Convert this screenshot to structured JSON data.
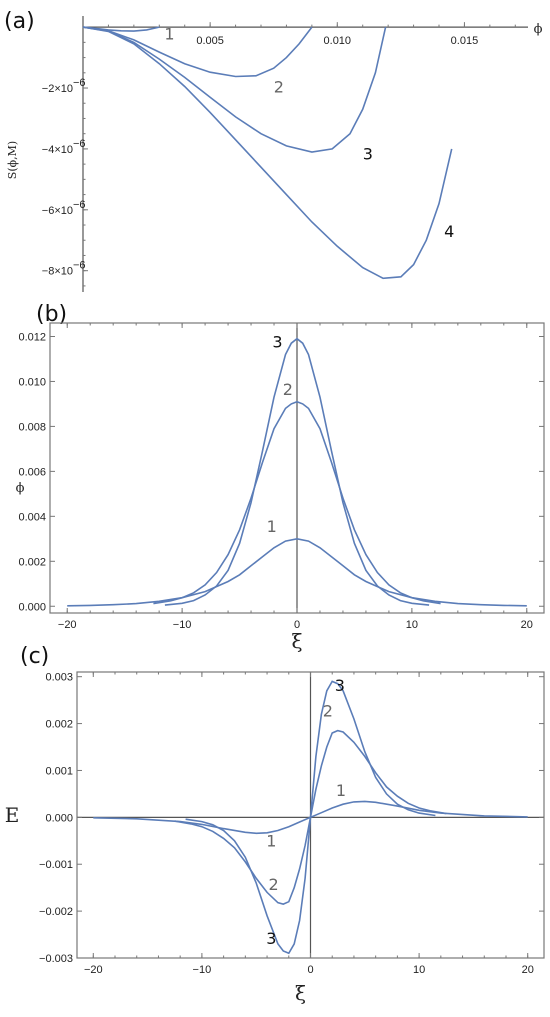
{
  "chart_data": [
    {
      "panel": "(a)",
      "type": "line",
      "xlabel": "ϕ",
      "ylabel": "S(ϕ,M)",
      "xlim": [
        0,
        0.0175
      ],
      "ylim": [
        -8.7e-06,
        3e-07
      ],
      "xticks": [
        {
          "v": 0.005,
          "label": "0.005"
        },
        {
          "v": 0.01,
          "label": "0.010"
        },
        {
          "v": 0.015,
          "label": "0.015"
        }
      ],
      "yticks": [
        {
          "v": -2e-06,
          "label": "−2×10",
          "exp": "−6"
        },
        {
          "v": -4e-06,
          "label": "−4×10",
          "exp": "−6"
        },
        {
          "v": -6e-06,
          "label": "−6×10",
          "exp": "−6"
        },
        {
          "v": -8e-06,
          "label": "−8×10",
          "exp": "−6"
        }
      ],
      "series": [
        {
          "label": "1",
          "label_color": "#666666",
          "label_x": 0.0034,
          "label_y": -4e-07,
          "x": [
            0,
            0.0005,
            0.001,
            0.0015,
            0.002,
            0.0025,
            0.003
          ],
          "y": [
            0,
            -4e-08,
            -9e-08,
            -1.2e-07,
            -1.3e-07,
            -9e-08,
            0
          ]
        },
        {
          "label": "2",
          "label_color": "#666666",
          "label_x": 0.0077,
          "label_y": -2.15e-06,
          "x": [
            0,
            0.001,
            0.002,
            0.003,
            0.004,
            0.005,
            0.006,
            0.0068,
            0.0075,
            0.008,
            0.0085,
            0.009
          ],
          "y": [
            0,
            -1.2e-07,
            -4.2e-07,
            -8.2e-07,
            -1.2e-06,
            -1.48e-06,
            -1.62e-06,
            -1.6e-06,
            -1.35e-06,
            -1e-06,
            -5.5e-07,
            0
          ]
        },
        {
          "label": "3",
          "label_color": "#111111",
          "label_x": 0.0112,
          "label_y": -4.35e-06,
          "x": [
            0,
            0.001,
            0.002,
            0.003,
            0.004,
            0.005,
            0.006,
            0.007,
            0.008,
            0.009,
            0.0098,
            0.0105,
            0.011,
            0.0115,
            0.0119
          ],
          "y": [
            0,
            -1.3e-07,
            -5e-07,
            -1.05e-06,
            -1.65e-06,
            -2.3e-06,
            -2.95e-06,
            -3.5e-06,
            -3.9e-06,
            -4.1e-06,
            -4e-06,
            -3.5e-06,
            -2.7e-06,
            -1.5e-06,
            0
          ]
        },
        {
          "label": "4",
          "label_color": "#111111",
          "label_x": 0.0144,
          "label_y": -6.9e-06,
          "x": [
            0,
            0.001,
            0.002,
            0.003,
            0.004,
            0.005,
            0.006,
            0.007,
            0.008,
            0.009,
            0.01,
            0.011,
            0.0118,
            0.0125,
            0.013,
            0.0135,
            0.014,
            0.0145
          ],
          "y": [
            0,
            -1.4e-07,
            -5.5e-07,
            -1.2e-06,
            -1.95e-06,
            -2.8e-06,
            -3.7e-06,
            -4.6e-06,
            -5.5e-06,
            -6.4e-06,
            -7.2e-06,
            -7.9e-06,
            -8.25e-06,
            -8.2e-06,
            -7.8e-06,
            -7e-06,
            -5.8e-06,
            -4e-06
          ]
        }
      ]
    },
    {
      "panel": "(b)",
      "type": "line",
      "xlabel": "ξ",
      "ylabel": "ϕ",
      "xlim": [
        -21.5,
        21.5
      ],
      "ylim": [
        -0.0003,
        0.0126
      ],
      "xticks": [
        {
          "v": -20,
          "label": "−20"
        },
        {
          "v": -10,
          "label": "−10"
        },
        {
          "v": 0,
          "label": "0"
        },
        {
          "v": 10,
          "label": "10"
        },
        {
          "v": 20,
          "label": "20"
        }
      ],
      "yticks": [
        {
          "v": 0,
          "label": "0.000"
        },
        {
          "v": 0.002,
          "label": "0.002"
        },
        {
          "v": 0.004,
          "label": "0.004"
        },
        {
          "v": 0.006,
          "label": "0.006"
        },
        {
          "v": 0.008,
          "label": "0.008"
        },
        {
          "v": 0.01,
          "label": "0.010"
        },
        {
          "v": 0.012,
          "label": "0.012"
        }
      ],
      "series": [
        {
          "label": "1",
          "label_color": "#666666",
          "label_x": -2.2,
          "label_y": 0.0033,
          "x": [
            -20,
            -18,
            -16,
            -14,
            -12,
            -10,
            -8,
            -6,
            -5,
            -4,
            -3,
            -2,
            -1,
            0,
            1,
            2,
            3,
            4,
            5,
            6,
            8,
            10,
            12,
            14,
            16,
            18,
            20
          ],
          "y": [
            2e-05,
            4e-05,
            7e-05,
            0.00012,
            0.00022,
            0.00038,
            0.00065,
            0.0011,
            0.0014,
            0.0018,
            0.0022,
            0.0026,
            0.0029,
            0.003,
            0.0029,
            0.0026,
            0.0022,
            0.0018,
            0.0014,
            0.0011,
            0.00065,
            0.00038,
            0.00022,
            0.00012,
            7e-05,
            4e-05,
            2e-05
          ]
        },
        {
          "label": "2",
          "label_color": "#666666",
          "label_x": -0.8,
          "label_y": 0.0094,
          "x": [
            -12.5,
            -11,
            -10,
            -9,
            -8,
            -7,
            -6,
            -5,
            -4,
            -3,
            -2,
            -1,
            -0.5,
            0,
            0.5,
            1,
            2,
            3,
            4,
            5,
            6,
            7,
            8,
            9,
            10,
            11,
            12.5
          ],
          "y": [
            0.00012,
            0.00024,
            0.00038,
            0.0006,
            0.00095,
            0.0015,
            0.0023,
            0.0034,
            0.0048,
            0.0064,
            0.0079,
            0.0088,
            0.009,
            0.0091,
            0.009,
            0.0088,
            0.0079,
            0.0064,
            0.0048,
            0.0034,
            0.0023,
            0.0015,
            0.00095,
            0.0006,
            0.00038,
            0.00024,
            0.00012
          ]
        },
        {
          "label": "3",
          "label_color": "#111111",
          "label_x": -1.7,
          "label_y": 0.0115,
          "x": [
            -11.5,
            -10,
            -9,
            -8,
            -7,
            -6,
            -5,
            -4,
            -3,
            -2,
            -1,
            -0.5,
            0,
            0.5,
            1,
            2,
            3,
            4,
            5,
            6,
            7,
            8,
            9,
            10,
            11.5
          ],
          "y": [
            5e-05,
            0.00013,
            0.00025,
            0.0005,
            0.0009,
            0.0016,
            0.0028,
            0.0046,
            0.0069,
            0.0093,
            0.0112,
            0.0117,
            0.0119,
            0.0117,
            0.0112,
            0.0093,
            0.0069,
            0.0046,
            0.0028,
            0.0016,
            0.0009,
            0.0005,
            0.00025,
            0.00013,
            5e-05
          ]
        }
      ]
    },
    {
      "panel": "(c)",
      "type": "line",
      "xlabel": "ξ",
      "ylabel": "E",
      "xlim": [
        -21.5,
        21.5
      ],
      "ylim": [
        -0.003,
        0.0031
      ],
      "xticks": [
        {
          "v": -20,
          "label": "−20"
        },
        {
          "v": -10,
          "label": "−10"
        },
        {
          "v": 0,
          "label": "0"
        },
        {
          "v": 10,
          "label": "10"
        },
        {
          "v": 20,
          "label": "20"
        }
      ],
      "yticks": [
        {
          "v": -0.003,
          "label": "−0.003"
        },
        {
          "v": -0.002,
          "label": "−0.002"
        },
        {
          "v": -0.001,
          "label": "−0.001"
        },
        {
          "v": 0,
          "label": "0.000"
        },
        {
          "v": 0.001,
          "label": "0.001"
        },
        {
          "v": 0.002,
          "label": "0.002"
        },
        {
          "v": 0.003,
          "label": "0.003"
        }
      ],
      "series": [
        {
          "label": "1",
          "label_color": "#666666",
          "label_x": 2.8,
          "label_y": 0.00045,
          "label2": "1",
          "label2_x": -3.6,
          "label2_y": -0.00062,
          "x": [
            -20,
            -16,
            -12,
            -10,
            -8,
            -6,
            -5,
            -4,
            -3,
            -2,
            -1,
            0,
            1,
            2,
            3,
            4,
            5,
            6,
            8,
            10,
            12,
            16,
            20
          ],
          "y": [
            -1e-05,
            -3e-05,
            -9e-05,
            -0.00015,
            -0.00024,
            -0.00032,
            -0.00034,
            -0.00033,
            -0.00028,
            -0.0002,
            -0.0001,
            0,
            0.0001,
            0.0002,
            0.00028,
            0.00033,
            0.00034,
            0.00032,
            0.00024,
            0.00015,
            9e-05,
            3e-05,
            1e-05
          ]
        },
        {
          "label": "2",
          "label_color": "#666666",
          "label_x": 1.6,
          "label_y": 0.00215,
          "label2": "2",
          "label2_x": -3.4,
          "label2_y": -0.00155,
          "x": [
            -12.5,
            -11,
            -10,
            -9,
            -8,
            -7,
            -6,
            -5,
            -4,
            -3,
            -2.5,
            -2,
            -1.5,
            -1,
            -0.5,
            0,
            0.5,
            1,
            1.5,
            2,
            2.5,
            3,
            4,
            5,
            6,
            7,
            8,
            9,
            10,
            11,
            12.5
          ],
          "y": [
            -8e-05,
            -0.00014,
            -0.0002,
            -0.0003,
            -0.00045,
            -0.00065,
            -0.00095,
            -0.0013,
            -0.0016,
            -0.00182,
            -0.00185,
            -0.0018,
            -0.0015,
            -0.0011,
            -0.0006,
            0,
            0.0006,
            0.0011,
            0.0015,
            0.0018,
            0.00185,
            0.00182,
            0.0016,
            0.0013,
            0.00095,
            0.00065,
            0.00045,
            0.0003,
            0.0002,
            0.00014,
            8e-05
          ]
        },
        {
          "label": "3",
          "label_color": "#111111",
          "label_x": 2.7,
          "label_y": 0.0027,
          "label2": "3",
          "label2_x": -3.6,
          "label2_y": -0.0027,
          "x": [
            -11.5,
            -10,
            -9,
            -8,
            -7,
            -6,
            -5,
            -4,
            -3,
            -2.5,
            -2,
            -1.5,
            -1,
            -0.5,
            0,
            0.5,
            1,
            1.5,
            2,
            2.5,
            3,
            4,
            5,
            6,
            7,
            8,
            9,
            10,
            11.5
          ],
          "y": [
            -4e-05,
            -9e-05,
            -0.00016,
            -0.00028,
            -0.0005,
            -0.00085,
            -0.0014,
            -0.0021,
            -0.0027,
            -0.00285,
            -0.0029,
            -0.0027,
            -0.0022,
            -0.0013,
            0,
            0.0013,
            0.0022,
            0.0027,
            0.0029,
            0.00285,
            0.0027,
            0.0021,
            0.0014,
            0.00085,
            0.0005,
            0.00028,
            0.00016,
            9e-05,
            4e-05
          ]
        }
      ]
    }
  ]
}
